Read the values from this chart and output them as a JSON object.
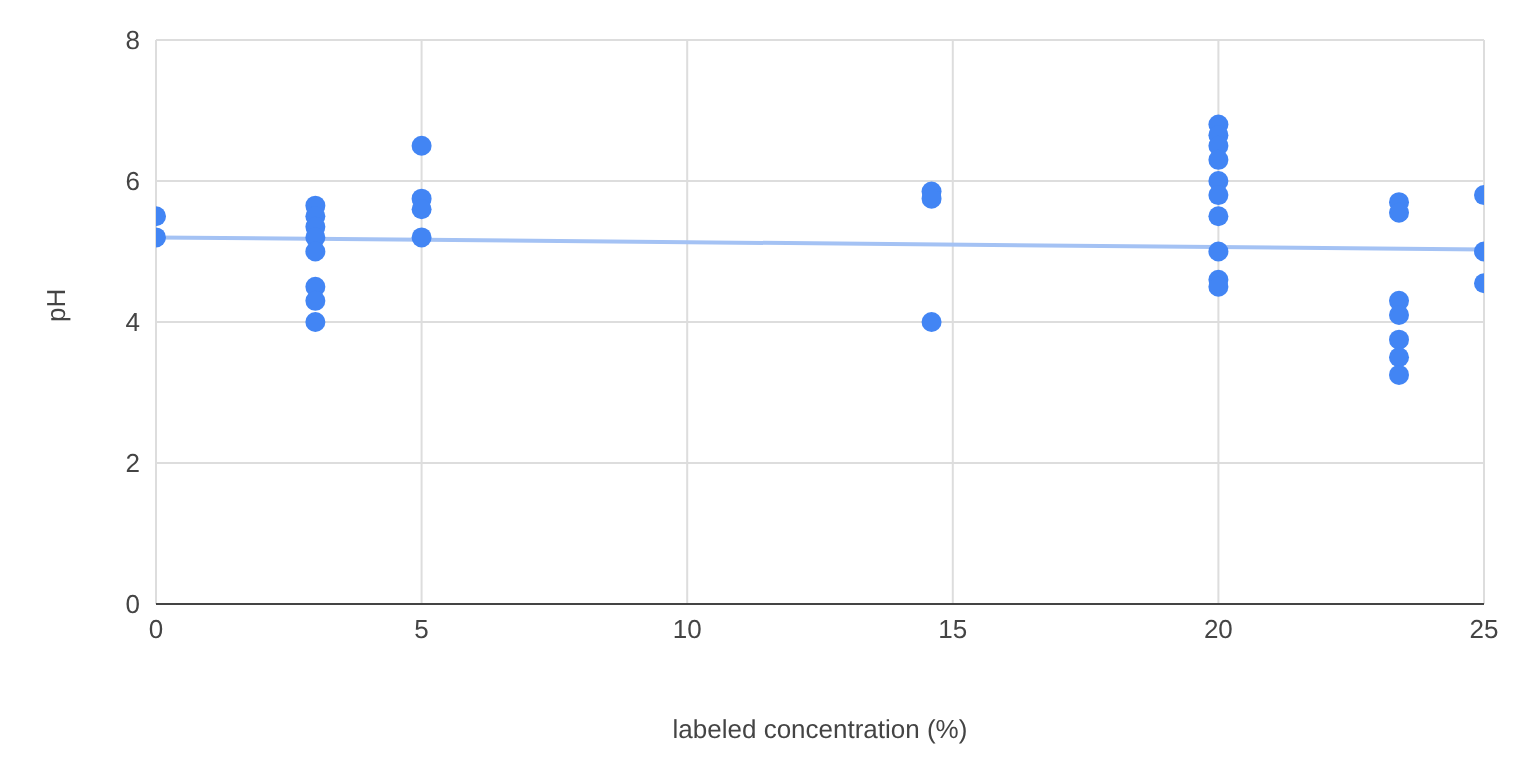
{
  "chart_data": {
    "type": "scatter",
    "xlabel": "labeled concentration (%)",
    "ylabel": "pH",
    "xlim": [
      0,
      25
    ],
    "xticks": [
      0,
      5,
      10,
      15,
      20,
      25
    ],
    "ylim": [
      0,
      8
    ],
    "yticks": [
      0,
      2,
      4,
      6,
      8
    ],
    "grid": true,
    "marker": "circle",
    "series": [
      {
        "color": "#4285f4",
        "x": [
          0,
          0,
          3,
          3,
          3,
          3,
          3,
          3,
          3,
          3,
          5,
          5,
          5,
          5,
          14.6,
          14.6,
          14.6,
          20,
          20,
          20,
          20,
          20,
          20,
          20,
          20,
          20,
          20,
          23.4,
          23.4,
          23.4,
          23.4,
          23.4,
          23.4,
          23.4,
          25,
          25,
          25
        ],
        "values": [
          5.5,
          5.2,
          5.65,
          5.5,
          5.35,
          5.2,
          5.0,
          4.5,
          4.3,
          4.0,
          6.5,
          5.75,
          5.6,
          5.2,
          5.85,
          5.75,
          4.0,
          6.8,
          6.65,
          6.5,
          6.3,
          6.0,
          5.8,
          5.5,
          5.0,
          4.6,
          4.5,
          5.7,
          5.55,
          4.3,
          4.1,
          3.75,
          3.5,
          3.25,
          5.8,
          5.0,
          4.55
        ]
      },
      {
        "type": "line",
        "marker": "none",
        "color": "#a4c2f4",
        "x": [
          0,
          25
        ],
        "values": [
          5.2,
          5.03
        ]
      }
    ]
  }
}
